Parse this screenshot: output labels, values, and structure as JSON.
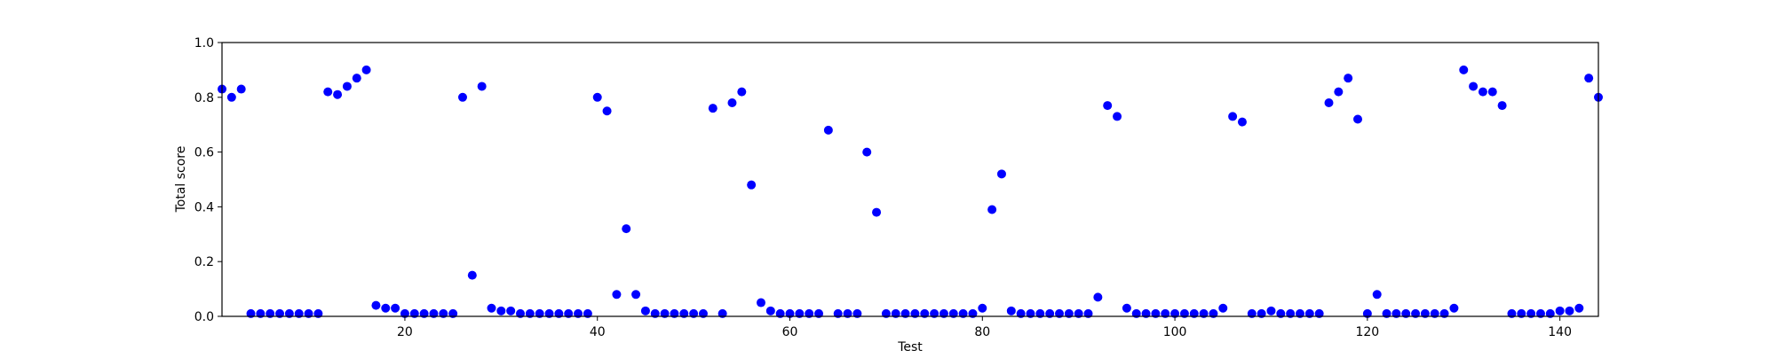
{
  "chart_data": {
    "type": "scatter",
    "title": "",
    "xlabel": "Test",
    "ylabel": "Total score",
    "xlim": [
      1,
      144
    ],
    "ylim": [
      0,
      1
    ],
    "x_ticks": [
      20,
      40,
      60,
      80,
      100,
      120,
      140
    ],
    "y_ticks": [
      0.0,
      0.2,
      0.4,
      0.6,
      0.8,
      1.0
    ],
    "y_tick_labels": [
      "0.0",
      "0.2",
      "0.4",
      "0.6",
      "0.8",
      "1.0"
    ],
    "grid": false,
    "marker_color": "#0000ff",
    "series": [
      {
        "x": [
          1,
          2,
          3,
          4,
          5,
          6,
          7,
          8,
          9,
          10,
          11,
          12,
          13,
          14,
          15,
          16,
          17,
          18,
          19,
          20,
          21,
          22,
          23,
          24,
          25,
          26,
          27,
          28,
          29,
          30,
          31,
          32,
          33,
          34,
          35,
          36,
          37,
          38,
          39,
          40,
          41,
          42,
          43,
          44,
          45,
          46,
          47,
          48,
          49,
          50,
          51,
          52,
          53,
          54,
          55,
          56,
          57,
          58,
          59,
          60,
          61,
          62,
          63,
          64,
          65,
          66,
          67,
          68,
          69,
          70,
          71,
          72,
          73,
          74,
          75,
          76,
          77,
          78,
          79,
          80,
          81,
          82,
          83,
          84,
          85,
          86,
          87,
          88,
          89,
          90,
          91,
          92,
          93,
          94,
          95,
          96,
          97,
          98,
          99,
          100,
          101,
          102,
          103,
          104,
          105,
          106,
          107,
          108,
          109,
          110,
          111,
          112,
          113,
          114,
          115,
          116,
          117,
          118,
          119,
          120,
          121,
          122,
          123,
          124,
          125,
          126,
          127,
          128,
          129,
          130,
          131,
          132,
          133,
          134,
          135,
          136,
          137,
          138,
          139,
          140,
          141,
          142,
          143,
          144
        ],
        "values": [
          0.83,
          0.8,
          0.83,
          0.01,
          0.01,
          0.01,
          0.01,
          0.01,
          0.01,
          0.01,
          0.01,
          0.82,
          0.81,
          0.84,
          0.87,
          0.9,
          0.04,
          0.03,
          0.03,
          0.01,
          0.01,
          0.01,
          0.01,
          0.01,
          0.01,
          0.8,
          0.15,
          0.84,
          0.03,
          0.02,
          0.02,
          0.01,
          0.01,
          0.01,
          0.01,
          0.01,
          0.01,
          0.01,
          0.01,
          0.8,
          0.75,
          0.08,
          0.32,
          0.08,
          0.02,
          0.01,
          0.01,
          0.01,
          0.01,
          0.01,
          0.01,
          0.76,
          0.01,
          0.78,
          0.82,
          0.48,
          0.05,
          0.02,
          0.01,
          0.01,
          0.01,
          0.01,
          0.01,
          0.68,
          0.01,
          0.01,
          0.01,
          0.6,
          0.38,
          0.01,
          0.01,
          0.01,
          0.01,
          0.01,
          0.01,
          0.01,
          0.01,
          0.01,
          0.01,
          0.03,
          0.39,
          0.52,
          0.02,
          0.01,
          0.01,
          0.01,
          0.01,
          0.01,
          0.01,
          0.01,
          0.01,
          0.07,
          0.77,
          0.73,
          0.03,
          0.01,
          0.01,
          0.01,
          0.01,
          0.01,
          0.01,
          0.01,
          0.01,
          0.01,
          0.03,
          0.73,
          0.71,
          0.01,
          0.01,
          0.02,
          0.01,
          0.01,
          0.01,
          0.01,
          0.01,
          0.78,
          0.82,
          0.87,
          0.72,
          0.01,
          0.08,
          0.01,
          0.01,
          0.01,
          0.01,
          0.01,
          0.01,
          0.01,
          0.03,
          0.9,
          0.84,
          0.82,
          0.82,
          0.77,
          0.01,
          0.01,
          0.01,
          0.01,
          0.01,
          0.02,
          0.02,
          0.03,
          0.87,
          0.8
        ]
      }
    ]
  }
}
